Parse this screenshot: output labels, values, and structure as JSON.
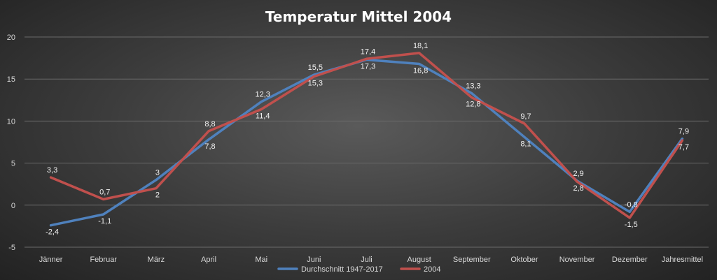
{
  "chart_data": {
    "type": "line",
    "title": "Temperatur Mittel 2004",
    "xlabel": "",
    "ylabel": "",
    "categories": [
      "Jänner",
      "Februar",
      "März",
      "April",
      "Mai",
      "Juni",
      "Juli",
      "August",
      "September",
      "Oktober",
      "November",
      "Dezember",
      "Jahresmittel"
    ],
    "ylim": [
      -5,
      20
    ],
    "yticks": [
      -5,
      0,
      5,
      10,
      15,
      20
    ],
    "grid": true,
    "legend_position": "bottom",
    "series": [
      {
        "name": "Durchschnitt 1947-2017",
        "color": "#4f81bd",
        "values": [
          -2.4,
          -1.1,
          3,
          7.8,
          12.3,
          15.5,
          17.3,
          16.8,
          13.3,
          8.1,
          2.9,
          -0.8,
          7.9
        ],
        "labels": [
          "-2,4",
          "-1,1",
          "3",
          "7,8",
          "12,3",
          "15,5",
          "17,3",
          "16,8",
          "13,3",
          "8,1",
          "2,9",
          "-0,8",
          "7,9"
        ]
      },
      {
        "name": "2004",
        "color": "#c0504d",
        "values": [
          3.3,
          0.7,
          2,
          8.8,
          11.4,
          15.3,
          17.4,
          18.1,
          12.8,
          9.7,
          2.8,
          -1.5,
          7.7
        ],
        "labels": [
          "3,3",
          "0,7",
          "2",
          "8,8",
          "11,4",
          "15,3",
          "17,4",
          "18,1",
          "12,8",
          "9,7",
          "2,8",
          "-1,5",
          "7,7"
        ]
      }
    ]
  }
}
